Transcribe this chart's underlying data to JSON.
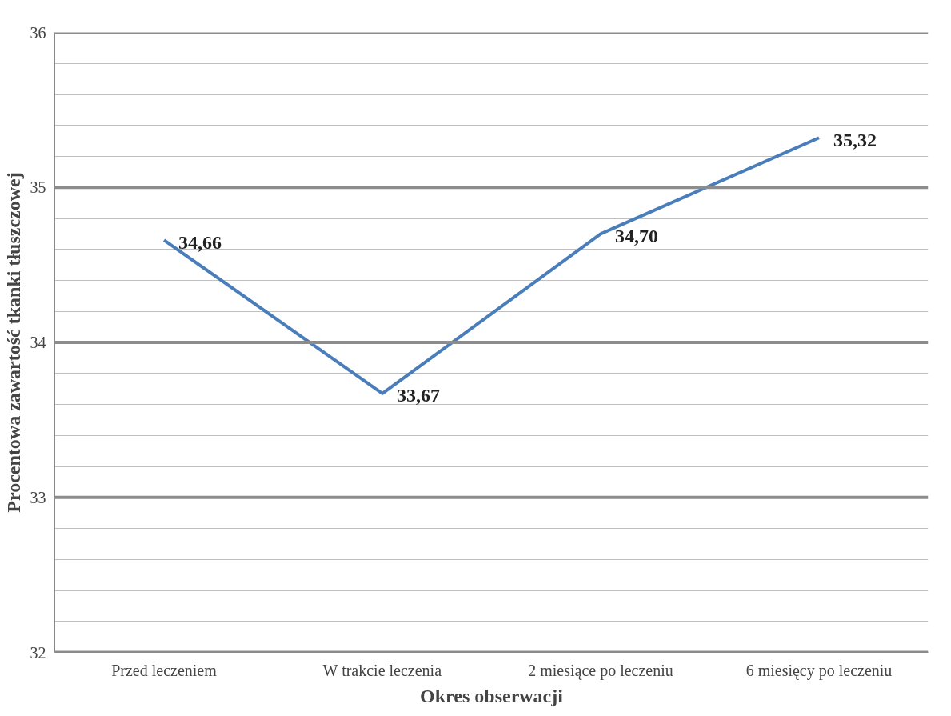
{
  "chart_data": {
    "type": "line",
    "xlabel": "Okres obserwacji",
    "ylabel": "Procentowa zawartość tkanki tłuszczowej",
    "categories": [
      "Przed leczeniem",
      "W trakcie leczenia",
      "2 miesiące po leczeniu",
      "6 miesięcy po leczeniu"
    ],
    "series": [
      {
        "color": "#4a7ebb",
        "values": [
          34.66,
          33.67,
          34.7,
          35.32
        ],
        "value_labels": [
          "34,66",
          "33,67",
          "34,70",
          "35,32"
        ]
      }
    ],
    "ylim": [
      32,
      36
    ],
    "yticks": [
      32,
      {
        "value": 32.2,
        "label": null
      },
      {
        "value": 32.4,
        "label": null
      },
      {
        "value": 32.6,
        "label": null
      },
      {
        "value": 32.8,
        "label": null
      },
      33,
      {
        "value": 33.2,
        "label": null
      },
      {
        "value": 33.4,
        "label": null
      },
      {
        "value": 33.6,
        "label": null
      },
      {
        "value": 33.8,
        "label": null
      },
      34,
      {
        "value": 34.2,
        "label": null
      },
      {
        "value": 34.4,
        "label": null
      },
      {
        "value": 34.6,
        "label": null
      },
      {
        "value": 34.8,
        "label": null
      },
      35,
      {
        "value": 35.2,
        "label": null
      },
      {
        "value": 35.4,
        "label": null
      },
      {
        "value": 35.6,
        "label": null
      },
      {
        "value": 35.8,
        "label": null
      },
      36
    ],
    "grid": "y",
    "marker": "none",
    "line_style": "solid"
  }
}
